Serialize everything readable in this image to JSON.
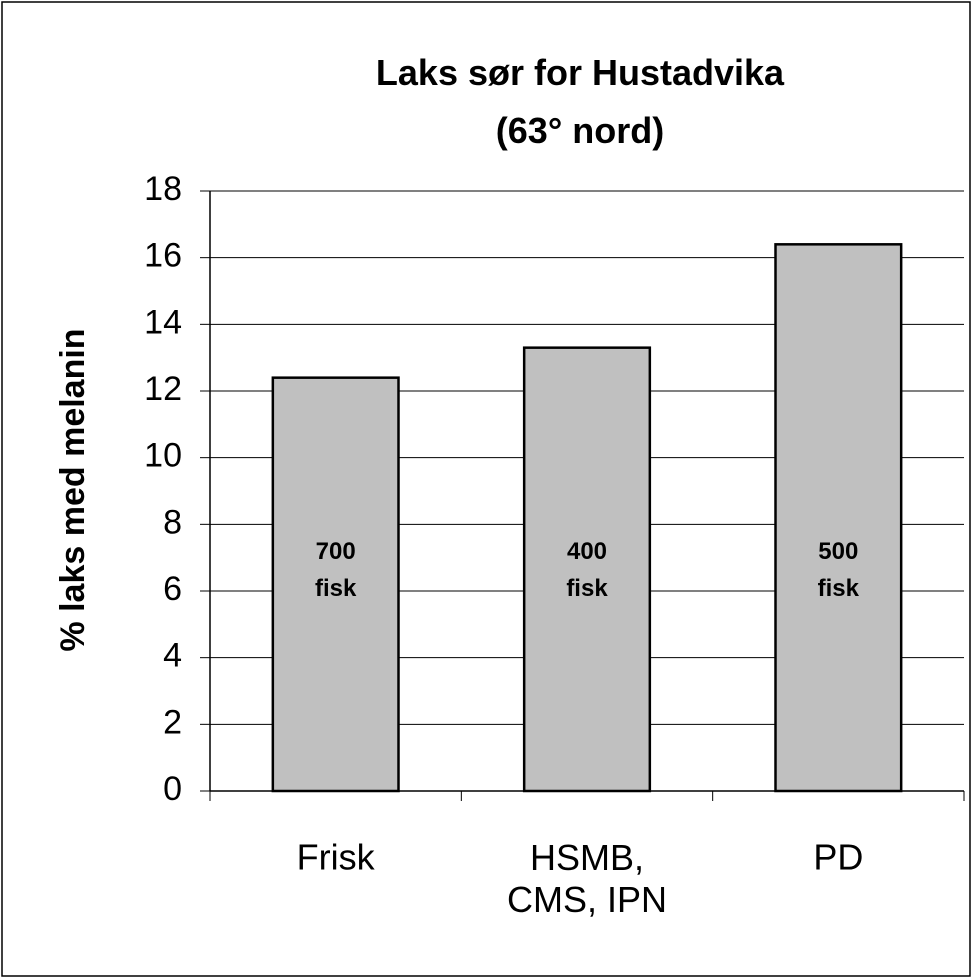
{
  "chart_data": {
    "type": "bar",
    "title": "Laks sør for Hustadvika\n(63° nord)",
    "y_label": "% laks med melanin",
    "categories": [
      "Frisk",
      "HSMB,\nCMS, IPN",
      "PD"
    ],
    "values": [
      12.4,
      13.3,
      16.4
    ],
    "annotations": [
      "700\nfisk",
      "400\nfisk",
      "500\nfisk"
    ],
    "color": "#c0c0c0",
    "ylim": [
      0,
      18
    ],
    "yticks": [
      0,
      2,
      4,
      6,
      8,
      10,
      12,
      14,
      16,
      18
    ],
    "grid": true
  }
}
